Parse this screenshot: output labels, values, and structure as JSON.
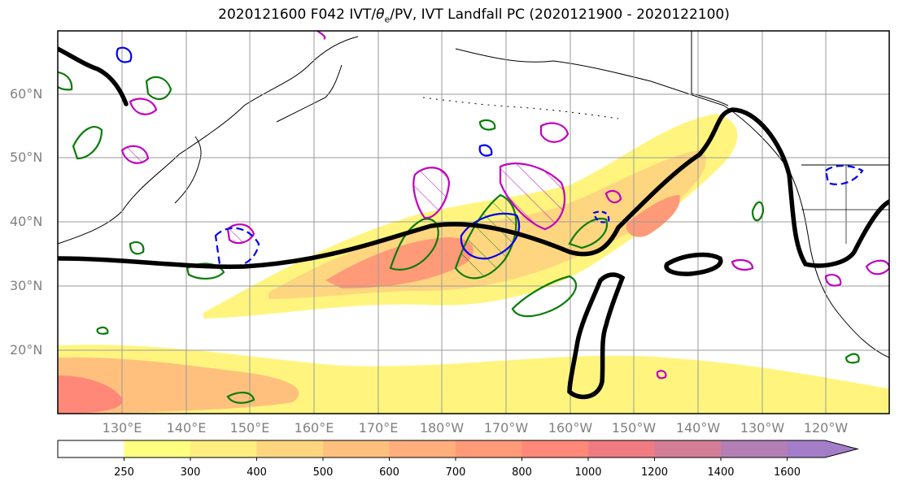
{
  "title": {
    "prefix": "2020121600 F042 IVT/",
    "symbol": "θ",
    "subscript": "e",
    "suffix": "/PV, IVT Landfall PC (2020121900 - 2020122100)"
  },
  "lat_labels": [
    "20°N",
    "30°N",
    "40°N",
    "50°N",
    "60°N"
  ],
  "lon_labels": [
    "130°E",
    "140°E",
    "150°E",
    "160°E",
    "170°E",
    "180°W",
    "170°W",
    "160°W",
    "150°W",
    "140°W",
    "130°W",
    "120°W"
  ],
  "colorbar": {
    "ticks": [
      "250",
      "300",
      "400",
      "500",
      "600",
      "700",
      "800",
      "1000",
      "1200",
      "1400",
      "1600"
    ],
    "colors": [
      "#ffffff",
      "#ffff80",
      "#ffee80",
      "#ffd680",
      "#ffc07e",
      "#ffae7c",
      "#ff9a78",
      "#ff8878",
      "#f07b82",
      "#d47d98",
      "#b47fb5",
      "#a47dc8"
    ]
  },
  "overlay_colors": {
    "coast": "#000000",
    "grid": "#9a9a9a",
    "landfall_pc": "#000000",
    "theta_e": "#0a7c0a",
    "pv": "#c000c0",
    "negative": "#0000ee"
  }
}
